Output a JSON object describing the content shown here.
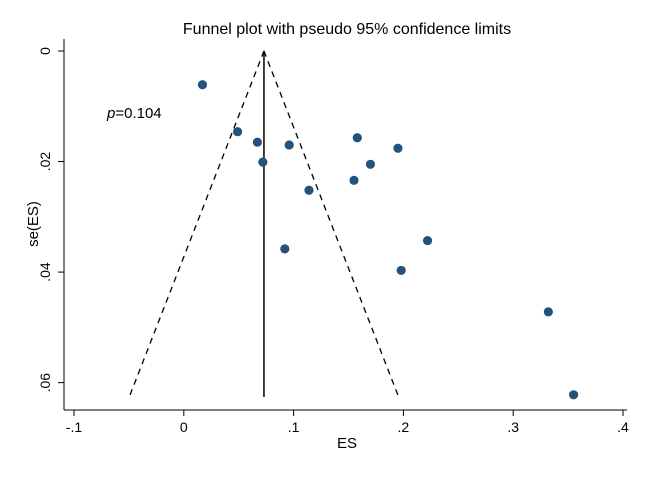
{
  "chart_data": {
    "type": "scatter",
    "title": "Funnel plot with pseudo 95% confidence limits",
    "xlabel": "ES",
    "ylabel": "se(ES)",
    "xlim": [
      -0.1,
      0.4
    ],
    "ylim": [
      0,
      0.0626
    ],
    "y_inverted": true,
    "grid": false,
    "x_ticks": [
      {
        "value": -0.1,
        "label": "-.1"
      },
      {
        "value": 0,
        "label": "0"
      },
      {
        "value": 0.1,
        "label": ".1"
      },
      {
        "value": 0.2,
        "label": ".2"
      },
      {
        "value": 0.3,
        "label": ".3"
      },
      {
        "value": 0.4,
        "label": ".4"
      }
    ],
    "y_ticks": [
      {
        "value": 0,
        "label": "0"
      },
      {
        "value": 0.02,
        "label": ".02"
      },
      {
        "value": 0.04,
        "label": ".04"
      },
      {
        "value": 0.06,
        "label": ".06"
      }
    ],
    "pooled_effect": 0.073,
    "se_max": 0.0626,
    "points": [
      {
        "x": 0.017,
        "y": 0.0061
      },
      {
        "x": 0.049,
        "y": 0.0146
      },
      {
        "x": 0.067,
        "y": 0.0165
      },
      {
        "x": 0.072,
        "y": 0.0201
      },
      {
        "x": 0.096,
        "y": 0.017
      },
      {
        "x": 0.158,
        "y": 0.0157
      },
      {
        "x": 0.195,
        "y": 0.0176
      },
      {
        "x": 0.17,
        "y": 0.0205
      },
      {
        "x": 0.155,
        "y": 0.0234
      },
      {
        "x": 0.114,
        "y": 0.0252
      },
      {
        "x": 0.222,
        "y": 0.0343
      },
      {
        "x": 0.092,
        "y": 0.0358
      },
      {
        "x": 0.198,
        "y": 0.0397
      },
      {
        "x": 0.332,
        "y": 0.0472
      },
      {
        "x": 0.355,
        "y": 0.0622
      }
    ],
    "marker_color": "#23527c",
    "annotation": {
      "italic": "p",
      "text": "=0.104"
    }
  }
}
